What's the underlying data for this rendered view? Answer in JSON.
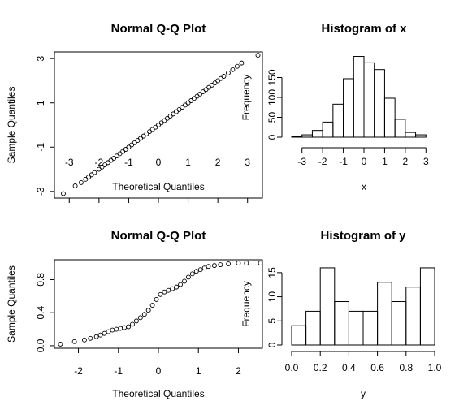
{
  "chart_data": [
    {
      "type": "scatter",
      "title": "Normal Q-Q Plot",
      "xlabel": "Theoretical Quantiles",
      "ylabel": "Sample Quantiles",
      "xlim": [
        -3.5,
        3.5
      ],
      "ylim": [
        -3.3,
        3.3
      ],
      "x_ticks": [
        -3,
        -2,
        -1,
        0,
        1,
        2,
        3
      ],
      "x_tick_labels": [
        "-3",
        "-2",
        "-1",
        "0",
        "1",
        "2",
        "3"
      ],
      "y_ticks": [
        -3,
        -1,
        1,
        3
      ],
      "y_tick_labels": [
        "-3",
        "-1",
        "1",
        "3"
      ],
      "marker": "open-circle",
      "points": [
        [
          -3.2,
          -3.1
        ],
        [
          -2.8,
          -2.75
        ],
        [
          -2.6,
          -2.6
        ],
        [
          -2.45,
          -2.45
        ],
        [
          -2.35,
          -2.35
        ],
        [
          -2.25,
          -2.25
        ],
        [
          -2.15,
          -2.15
        ],
        [
          -2.0,
          -2.0
        ],
        [
          -1.9,
          -1.9
        ],
        [
          -1.8,
          -1.8
        ],
        [
          -1.7,
          -1.7
        ],
        [
          -1.6,
          -1.6
        ],
        [
          -1.5,
          -1.5
        ],
        [
          -1.4,
          -1.4
        ],
        [
          -1.3,
          -1.3
        ],
        [
          -1.2,
          -1.2
        ],
        [
          -1.1,
          -1.1
        ],
        [
          -1.0,
          -1.0
        ],
        [
          -0.9,
          -0.9
        ],
        [
          -0.8,
          -0.8
        ],
        [
          -0.7,
          -0.7
        ],
        [
          -0.6,
          -0.6
        ],
        [
          -0.5,
          -0.5
        ],
        [
          -0.4,
          -0.4
        ],
        [
          -0.3,
          -0.3
        ],
        [
          -0.2,
          -0.2
        ],
        [
          -0.1,
          -0.1
        ],
        [
          0.0,
          0.0
        ],
        [
          0.1,
          0.1
        ],
        [
          0.2,
          0.2
        ],
        [
          0.3,
          0.3
        ],
        [
          0.4,
          0.4
        ],
        [
          0.5,
          0.5
        ],
        [
          0.6,
          0.6
        ],
        [
          0.7,
          0.7
        ],
        [
          0.8,
          0.8
        ],
        [
          0.9,
          0.9
        ],
        [
          1.0,
          1.0
        ],
        [
          1.1,
          1.1
        ],
        [
          1.2,
          1.2
        ],
        [
          1.3,
          1.3
        ],
        [
          1.4,
          1.4
        ],
        [
          1.5,
          1.5
        ],
        [
          1.6,
          1.6
        ],
        [
          1.7,
          1.7
        ],
        [
          1.8,
          1.8
        ],
        [
          1.9,
          1.9
        ],
        [
          2.0,
          2.0
        ],
        [
          2.1,
          2.1
        ],
        [
          2.2,
          2.2
        ],
        [
          2.35,
          2.35
        ],
        [
          2.5,
          2.5
        ],
        [
          2.65,
          2.65
        ],
        [
          2.8,
          2.8
        ],
        [
          3.35,
          3.15
        ]
      ]
    },
    {
      "type": "bar",
      "title": "Histogram of x",
      "xlabel": "x",
      "ylabel": "Frequency",
      "xlim": [
        -3.5,
        3.5
      ],
      "ylim": [
        0,
        200
      ],
      "x_ticks": [
        -3,
        -2,
        -1,
        0,
        1,
        2,
        3
      ],
      "x_tick_labels": [
        "-3",
        "-2",
        "-1",
        "0",
        "1",
        "2",
        "3"
      ],
      "y_ticks": [
        0,
        50,
        100,
        150
      ],
      "y_tick_labels": [
        "0",
        "50",
        "100",
        "150"
      ],
      "bin_edges": [
        -3.5,
        -3,
        -2.5,
        -2,
        -1.5,
        -1,
        -0.5,
        0,
        0.5,
        1,
        1.5,
        2,
        2.5,
        3
      ],
      "counts": [
        2,
        6,
        17,
        38,
        83,
        147,
        203,
        187,
        170,
        98,
        45,
        12,
        6
      ]
    },
    {
      "type": "scatter",
      "title": "Normal Q-Q Plot",
      "xlabel": "Theoretical Quantiles",
      "ylabel": "Sample Quantiles",
      "xlim": [
        -2.6,
        2.6
      ],
      "ylim": [
        -0.03,
        1.04
      ],
      "x_ticks": [
        -2,
        -1,
        0,
        1,
        2
      ],
      "x_tick_labels": [
        "-2",
        "-1",
        "0",
        "1",
        "2"
      ],
      "y_ticks": [
        0.0,
        0.4,
        0.8
      ],
      "y_tick_labels": [
        "0.0",
        "0.4",
        "0.8"
      ],
      "marker": "open-circle",
      "points": [
        [
          -2.45,
          0.02
        ],
        [
          -2.1,
          0.05
        ],
        [
          -1.85,
          0.07
        ],
        [
          -1.7,
          0.09
        ],
        [
          -1.55,
          0.11
        ],
        [
          -1.45,
          0.13
        ],
        [
          -1.35,
          0.15
        ],
        [
          -1.25,
          0.17
        ],
        [
          -1.15,
          0.19
        ],
        [
          -1.05,
          0.2
        ],
        [
          -0.95,
          0.21
        ],
        [
          -0.85,
          0.22
        ],
        [
          -0.75,
          0.23
        ],
        [
          -0.65,
          0.26
        ],
        [
          -0.55,
          0.3
        ],
        [
          -0.45,
          0.34
        ],
        [
          -0.35,
          0.38
        ],
        [
          -0.25,
          0.43
        ],
        [
          -0.15,
          0.49
        ],
        [
          -0.05,
          0.56
        ],
        [
          0.05,
          0.62
        ],
        [
          0.15,
          0.65
        ],
        [
          0.25,
          0.67
        ],
        [
          0.35,
          0.69
        ],
        [
          0.45,
          0.71
        ],
        [
          0.55,
          0.74
        ],
        [
          0.65,
          0.78
        ],
        [
          0.75,
          0.83
        ],
        [
          0.85,
          0.87
        ],
        [
          0.95,
          0.9
        ],
        [
          1.05,
          0.92
        ],
        [
          1.15,
          0.94
        ],
        [
          1.25,
          0.96
        ],
        [
          1.4,
          0.97
        ],
        [
          1.55,
          0.98
        ],
        [
          1.75,
          0.99
        ],
        [
          2.0,
          1.0
        ],
        [
          2.2,
          1.0
        ],
        [
          2.55,
          1.0
        ]
      ]
    },
    {
      "type": "bar",
      "title": "Histogram of y",
      "xlabel": "y",
      "ylabel": "Frequency",
      "xlim": [
        0,
        1
      ],
      "ylim": [
        0,
        17
      ],
      "x_ticks": [
        0.0,
        0.2,
        0.4,
        0.6,
        0.8,
        1.0
      ],
      "x_tick_labels": [
        "0.0",
        "0.2",
        "0.4",
        "0.6",
        "0.8",
        "1.0"
      ],
      "y_ticks": [
        0,
        5,
        10,
        15
      ],
      "y_tick_labels": [
        "0",
        "5",
        "10",
        "15"
      ],
      "bin_edges": [
        0.0,
        0.1,
        0.2,
        0.3,
        0.4,
        0.5,
        0.6,
        0.7,
        0.8,
        0.9,
        1.0
      ],
      "counts": [
        4,
        7,
        16,
        9,
        7,
        7,
        13,
        9,
        12,
        16
      ]
    }
  ]
}
